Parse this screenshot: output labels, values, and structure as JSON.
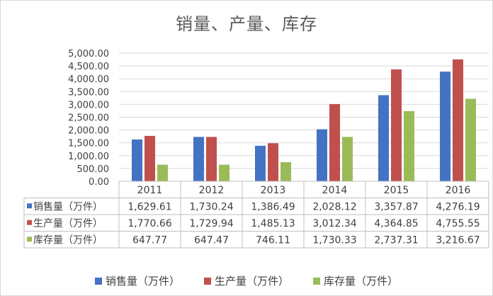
{
  "chart_data": {
    "type": "bar",
    "title": "销量、产量、库存",
    "categories": [
      "2011",
      "2012",
      "2013",
      "2014",
      "2015",
      "2016"
    ],
    "ylim": [
      0,
      5000
    ],
    "yticks": [
      "0.00",
      "500.00",
      "1,000.00",
      "1,500.00",
      "2,000.00",
      "2,500.00",
      "3,000.00",
      "3,500.00",
      "4,000.00",
      "4,500.00",
      "5,000.00"
    ],
    "grid": true,
    "legend_position": "bottom",
    "data_table": true,
    "series": [
      {
        "name": "销售量（万件）",
        "color": "#4472c4",
        "values": [
          1629.61,
          1730.24,
          1386.49,
          2028.12,
          3357.87,
          4276.19
        ],
        "labels": [
          "1,629.61",
          "1,730.24",
          "1,386.49",
          "2,028.12",
          "3,357.87",
          "4,276.19"
        ]
      },
      {
        "name": "生产量（万件）",
        "color": "#c0504d",
        "values": [
          1770.66,
          1729.94,
          1485.13,
          3012.34,
          4364.85,
          4755.55
        ],
        "labels": [
          "1,770.66",
          "1,729.94",
          "1,485.13",
          "3,012.34",
          "4,364.85",
          "4,755.55"
        ]
      },
      {
        "name": "库存量（万件）",
        "color": "#9bbb59",
        "values": [
          647.77,
          647.47,
          746.11,
          1730.33,
          2737.31,
          3216.67
        ],
        "labels": [
          "647.77",
          "647.47",
          "746.11",
          "1,730.33",
          "2,737.31",
          "3,216.67"
        ]
      }
    ]
  }
}
